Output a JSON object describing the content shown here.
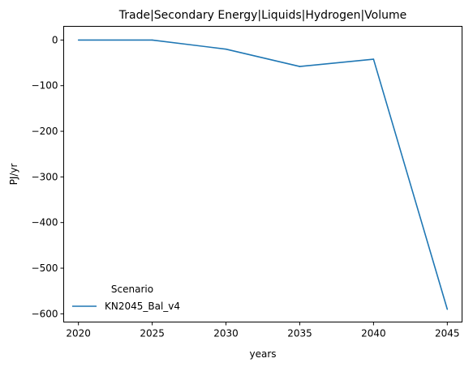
{
  "chart_data": {
    "type": "line",
    "title": "Trade|Secondary Energy|Liquids|Hydrogen|Volume",
    "xlabel": "years",
    "ylabel": "PJ/yr",
    "xlim": [
      2019,
      2046
    ],
    "ylim": [
      -618,
      30
    ],
    "x_ticks": [
      "2020",
      "2025",
      "2030",
      "2035",
      "2040",
      "2045"
    ],
    "y_ticks": [
      "0",
      "−100",
      "−200",
      "−300",
      "−400",
      "−500",
      "−600"
    ],
    "grid": false,
    "legend": {
      "title": "Scenario",
      "placement": "lower-left"
    },
    "series": [
      {
        "name": "KN2045_Bal_v4",
        "color": "#1f77b4",
        "x": [
          2020,
          2025,
          2030,
          2035,
          2040,
          2045
        ],
        "y": [
          0,
          0,
          -20,
          -58,
          -42,
          -590
        ]
      }
    ]
  }
}
